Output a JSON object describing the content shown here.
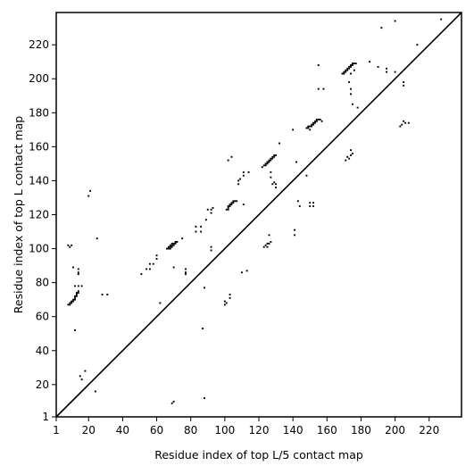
{
  "chart_data": {
    "type": "scatter",
    "xlabel": "Residue index of top L/5 contact map",
    "ylabel": "Residue index of top L contact map",
    "xlim": [
      1,
      239
    ],
    "ylim": [
      1,
      239
    ],
    "x_ticks": [
      1,
      20,
      40,
      60,
      80,
      100,
      120,
      140,
      160,
      180,
      200,
      220
    ],
    "y_ticks": [
      1,
      20,
      40,
      60,
      80,
      100,
      120,
      140,
      160,
      180,
      200,
      220
    ],
    "grid": false,
    "diagonal_line": true,
    "marker_color": "#000000",
    "upper_triangle_points": [
      [
        8,
        67
      ],
      [
        9,
        67
      ],
      [
        9,
        68
      ],
      [
        10,
        68
      ],
      [
        10,
        69
      ],
      [
        11,
        69
      ],
      [
        11,
        70
      ],
      [
        12,
        70
      ],
      [
        12,
        71
      ],
      [
        12,
        72
      ],
      [
        13,
        72
      ],
      [
        13,
        73
      ],
      [
        13,
        74
      ],
      [
        14,
        74
      ],
      [
        14,
        75
      ],
      [
        14,
        78
      ],
      [
        12,
        78
      ],
      [
        16,
        78
      ],
      [
        14,
        85
      ],
      [
        14,
        86
      ],
      [
        14,
        88
      ],
      [
        11,
        89
      ],
      [
        9,
        101
      ],
      [
        8,
        102
      ],
      [
        10,
        102
      ],
      [
        20,
        131
      ],
      [
        21,
        134
      ],
      [
        25,
        106
      ],
      [
        28,
        73
      ],
      [
        31,
        73
      ],
      [
        12,
        52
      ],
      [
        51,
        85
      ],
      [
        54,
        88
      ],
      [
        56,
        88
      ],
      [
        56,
        91
      ],
      [
        58,
        91
      ],
      [
        60,
        94
      ],
      [
        60,
        96
      ],
      [
        62,
        68
      ],
      [
        66,
        100
      ],
      [
        67,
        100
      ],
      [
        67,
        101
      ],
      [
        68,
        100
      ],
      [
        68,
        101
      ],
      [
        68,
        102
      ],
      [
        69,
        101
      ],
      [
        69,
        102
      ],
      [
        69,
        103
      ],
      [
        70,
        102
      ],
      [
        70,
        103
      ],
      [
        71,
        103
      ],
      [
        71,
        104
      ],
      [
        72,
        104
      ],
      [
        70,
        89
      ],
      [
        75,
        106
      ],
      [
        77,
        85
      ],
      [
        77,
        86
      ],
      [
        77,
        88
      ],
      [
        83,
        110
      ],
      [
        83,
        113
      ],
      [
        86,
        110
      ],
      [
        86,
        113
      ],
      [
        89,
        117
      ],
      [
        90,
        123
      ],
      [
        92,
        121
      ],
      [
        92,
        123
      ],
      [
        93,
        124
      ],
      [
        92,
        99
      ],
      [
        92,
        101
      ],
      [
        88,
        77
      ],
      [
        87,
        53
      ],
      [
        100,
        67
      ],
      [
        100,
        69
      ],
      [
        101,
        68
      ],
      [
        101,
        123
      ],
      [
        102,
        123
      ],
      [
        102,
        124
      ],
      [
        102,
        125
      ],
      [
        103,
        125
      ],
      [
        103,
        126
      ],
      [
        104,
        126
      ],
      [
        104,
        127
      ],
      [
        105,
        127
      ],
      [
        105,
        128
      ],
      [
        106,
        128
      ],
      [
        107,
        128
      ],
      [
        102,
        152
      ],
      [
        104,
        154
      ],
      [
        108,
        138
      ],
      [
        108,
        140
      ],
      [
        109,
        141
      ],
      [
        111,
        143
      ],
      [
        111,
        145
      ],
      [
        111,
        126
      ],
      [
        114,
        145
      ],
      [
        110,
        86
      ],
      [
        113,
        87
      ],
      [
        103,
        71
      ],
      [
        103,
        73
      ],
      [
        123,
        101
      ],
      [
        124,
        102
      ],
      [
        125,
        101
      ],
      [
        125,
        103
      ],
      [
        126,
        103
      ],
      [
        127,
        104
      ],
      [
        126,
        108
      ],
      [
        127,
        142
      ],
      [
        127,
        145
      ],
      [
        128,
        138
      ],
      [
        129,
        139
      ],
      [
        130,
        136
      ],
      [
        130,
        138
      ],
      [
        122,
        148
      ],
      [
        123,
        149
      ],
      [
        124,
        149
      ],
      [
        124,
        150
      ],
      [
        125,
        150
      ],
      [
        125,
        151
      ],
      [
        126,
        151
      ],
      [
        126,
        152
      ],
      [
        127,
        152
      ],
      [
        127,
        153
      ],
      [
        128,
        153
      ],
      [
        128,
        154
      ],
      [
        129,
        154
      ],
      [
        129,
        155
      ],
      [
        130,
        155
      ],
      [
        132,
        162
      ],
      [
        140,
        170
      ],
      [
        142,
        151
      ],
      [
        141,
        108
      ],
      [
        141,
        111
      ],
      [
        143,
        128
      ],
      [
        144,
        125
      ],
      [
        148,
        143
      ],
      [
        150,
        125
      ],
      [
        150,
        127
      ],
      [
        152,
        125
      ],
      [
        152,
        127
      ],
      [
        148,
        171
      ],
      [
        149,
        171
      ],
      [
        149,
        172
      ],
      [
        150,
        170
      ],
      [
        150,
        172
      ],
      [
        151,
        172
      ],
      [
        151,
        173
      ],
      [
        152,
        173
      ],
      [
        152,
        174
      ],
      [
        153,
        174
      ],
      [
        153,
        175
      ],
      [
        154,
        175
      ],
      [
        154,
        176
      ],
      [
        155,
        176
      ],
      [
        156,
        176
      ],
      [
        157,
        175
      ],
      [
        155,
        194
      ],
      [
        158,
        194
      ],
      [
        155,
        208
      ],
      [
        169,
        203
      ],
      [
        170,
        203
      ],
      [
        170,
        204
      ],
      [
        171,
        204
      ],
      [
        171,
        205
      ],
      [
        172,
        205
      ],
      [
        172,
        206
      ],
      [
        173,
        206
      ],
      [
        173,
        207
      ],
      [
        174,
        207
      ],
      [
        174,
        208
      ],
      [
        175,
        208
      ],
      [
        175,
        209
      ],
      [
        176,
        209
      ],
      [
        177,
        209
      ],
      [
        174,
        203
      ],
      [
        176,
        205
      ],
      [
        173,
        198
      ],
      [
        174,
        194
      ],
      [
        174,
        191
      ],
      [
        175,
        185
      ],
      [
        171,
        152
      ],
      [
        172,
        154
      ],
      [
        173,
        153
      ],
      [
        174,
        155
      ],
      [
        175,
        156
      ],
      [
        174,
        158
      ],
      [
        178,
        183
      ],
      [
        185,
        210
      ],
      [
        190,
        207
      ],
      [
        192,
        230
      ],
      [
        195,
        206
      ],
      [
        195,
        204
      ],
      [
        200,
        204
      ],
      [
        200,
        234
      ],
      [
        203,
        172
      ],
      [
        204,
        173
      ],
      [
        205,
        175
      ],
      [
        206,
        174
      ],
      [
        208,
        174
      ],
      [
        205,
        196
      ],
      [
        205,
        198
      ],
      [
        213,
        220
      ],
      [
        227,
        235
      ],
      [
        15,
        25
      ],
      [
        16,
        23
      ],
      [
        18,
        28
      ],
      [
        24,
        16
      ],
      [
        69,
        9
      ],
      [
        70,
        10
      ],
      [
        88,
        12
      ]
    ],
    "lower_triangle_points": []
  }
}
